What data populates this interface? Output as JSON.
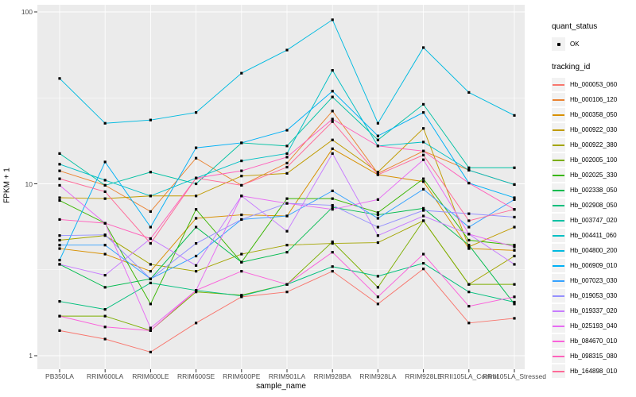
{
  "chart_data": {
    "type": "line",
    "title": "",
    "xlabel": "sample_name",
    "ylabel": "FPKM + 1",
    "y_scale": "log10",
    "ylim": [
      1,
      100
    ],
    "y_ticks": [
      1,
      10,
      100
    ],
    "y_minor_ticks": [
      3.1623,
      31.623
    ],
    "grid": "white major+minor on gray panel",
    "legend_position": "right",
    "panel_color": "#EBEBEB",
    "grid_color": "#FFFFFF",
    "point_color": "#000000",
    "x_categories": [
      "PB350LA",
      "RRIM600LA",
      "RRIM600LE",
      "RRIM600SE",
      "RRIM600PE",
      "RRIM901LA",
      "RRIM928BA",
      "RRIM928LA",
      "RRIM928LE",
      "RRII105LA_Control",
      "RRII105LA_Stressed"
    ],
    "series": [
      {
        "name": "Hb_000053_060",
        "color": "#F8766D",
        "values": [
          1.4,
          1.25,
          1.05,
          1.55,
          2.2,
          2.35,
          3.1,
          2.0,
          3.2,
          1.55,
          1.65
        ]
      },
      {
        "name": "Hb_000106_120",
        "color": "#EA8331",
        "values": [
          11.9,
          9.8,
          6.9,
          14.1,
          9.8,
          13.2,
          26.5,
          11.5,
          15.5,
          12.0,
          9.9
        ]
      },
      {
        "name": "Hb_000358_050",
        "color": "#D89000",
        "values": [
          4.2,
          3.9,
          3.1,
          6.3,
          6.6,
          6.5,
          16.0,
          11.3,
          10.3,
          4.2,
          4.1
        ]
      },
      {
        "name": "Hb_000922_030",
        "color": "#C09B00",
        "values": [
          8.3,
          8.2,
          8.5,
          8.5,
          11.1,
          11.5,
          18.0,
          11.7,
          21.0,
          4.3,
          5.6
        ]
      },
      {
        "name": "Hb_000922_380",
        "color": "#A3A500",
        "values": [
          4.7,
          5.0,
          3.4,
          3.1,
          3.9,
          4.4,
          4.5,
          4.55,
          6.1,
          2.6,
          3.8
        ]
      },
      {
        "name": "Hb_002005_100",
        "color": "#7CAE00",
        "values": [
          1.7,
          1.7,
          1.4,
          2.35,
          2.25,
          2.6,
          4.6,
          2.5,
          6.1,
          2.6,
          2.6
        ]
      },
      {
        "name": "Hb_002025_330",
        "color": "#39B600",
        "values": [
          8.0,
          5.9,
          2.0,
          7.1,
          3.5,
          8.2,
          8.2,
          6.8,
          10.7,
          4.7,
          4.4
        ]
      },
      {
        "name": "Hb_002338_050",
        "color": "#00BB4E",
        "values": [
          3.4,
          2.5,
          2.8,
          5.6,
          3.5,
          4.0,
          7.3,
          6.6,
          7.2,
          4.4,
          2.0
        ]
      },
      {
        "name": "Hb_002908_050",
        "color": "#00BF7D",
        "values": [
          2.07,
          1.86,
          2.65,
          2.4,
          2.23,
          2.6,
          3.3,
          2.9,
          3.45,
          2.35,
          2.05
        ]
      },
      {
        "name": "Hb_003747_020",
        "color": "#00C1A3",
        "values": [
          15.0,
          9.8,
          11.7,
          10.0,
          17.3,
          16.6,
          32.0,
          18.0,
          29.0,
          12.4,
          12.4
        ]
      },
      {
        "name": "Hb_004411_060",
        "color": "#00BFC4",
        "values": [
          13.0,
          10.5,
          8.5,
          10.8,
          13.6,
          15.0,
          45.7,
          16.6,
          17.5,
          12.0,
          9.9
        ]
      },
      {
        "name": "Hb_004800_200",
        "color": "#00BAE0",
        "values": [
          41.0,
          22.5,
          23.5,
          26.0,
          44.0,
          60.0,
          90.0,
          22.5,
          62.0,
          34.0,
          25.0
        ]
      },
      {
        "name": "Hb_006909_010",
        "color": "#00B0F6",
        "values": [
          3.6,
          13.4,
          5.6,
          16.2,
          17.3,
          20.5,
          34.6,
          19.0,
          26.0,
          10.1,
          8.3
        ]
      },
      {
        "name": "Hb_007023_030",
        "color": "#35A2FF",
        "values": [
          4.4,
          4.4,
          2.8,
          3.8,
          6.2,
          6.5,
          9.1,
          6.3,
          9.3,
          5.6,
          8.1
        ]
      },
      {
        "name": "Hb_019053_030",
        "color": "#9590FF",
        "values": [
          5.0,
          5.05,
          2.8,
          4.5,
          6.2,
          7.7,
          7.5,
          5.6,
          7.0,
          6.7,
          6.4
        ]
      },
      {
        "name": "Hb_019337_020",
        "color": "#C77CFF",
        "values": [
          3.4,
          2.94,
          4.8,
          3.35,
          8.5,
          5.3,
          15.0,
          5.0,
          6.5,
          5.1,
          3.4
        ]
      },
      {
        "name": "Hb_025193_040",
        "color": "#E76BF3",
        "values": [
          9.8,
          5.9,
          1.45,
          2.4,
          8.5,
          7.7,
          7.1,
          8.1,
          13.8,
          5.1,
          4.3
        ]
      },
      {
        "name": "Hb_084670_010",
        "color": "#FA62DB",
        "values": [
          1.7,
          1.47,
          1.4,
          2.4,
          3.1,
          2.6,
          4.0,
          2.2,
          3.9,
          1.94,
          2.2
        ]
      },
      {
        "name": "Hb_098315_080",
        "color": "#FF62BC",
        "values": [
          6.2,
          5.9,
          4.8,
          10.8,
          11.9,
          14.3,
          23.8,
          16.6,
          15.5,
          10.1,
          7.1
        ]
      },
      {
        "name": "Hb_164898_010",
        "color": "#FF6A98",
        "values": [
          10.7,
          9.0,
          4.5,
          10.8,
          9.8,
          12.5,
          23.0,
          11.3,
          14.7,
          6.1,
          7.1
        ]
      }
    ]
  },
  "axes": {
    "x_title": "sample_name",
    "y_title": "FPKM + 1",
    "y_tick_labels": [
      "1",
      "10",
      "100"
    ]
  },
  "legend": {
    "quant_status_title": "quant_status",
    "quant_status_items": [
      {
        "label": "OK",
        "marker": "black-point"
      }
    ],
    "tracking_id_title": "tracking_id"
  }
}
